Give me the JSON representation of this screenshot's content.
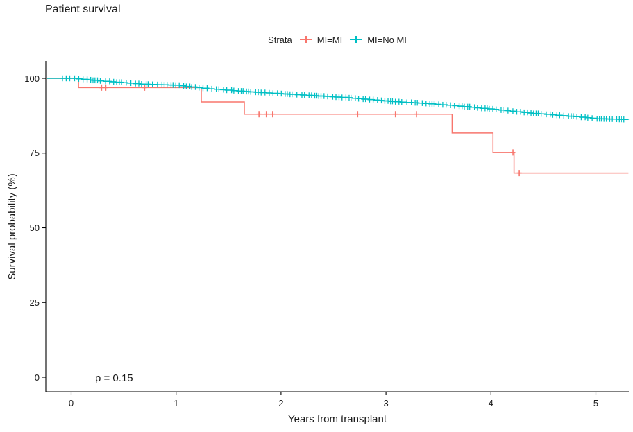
{
  "title": "Patient survival",
  "legend": {
    "title": "Strata",
    "items": [
      {
        "label": "MI=MI",
        "color": "#F8766D"
      },
      {
        "label": "MI=No MI",
        "color": "#00BFC4"
      }
    ]
  },
  "axes": {
    "x": {
      "label": "Years from transplant",
      "ticks": [
        0,
        1,
        2,
        3,
        4,
        5
      ]
    },
    "y": {
      "label": "Survival probability (%)",
      "ticks": [
        0,
        25,
        50,
        75,
        100
      ]
    }
  },
  "annotation": {
    "p_value": "p = 0.15"
  },
  "chart_data": {
    "type": "line",
    "subtype": "kaplan-meier-step",
    "title": "Patient survival",
    "xlabel": "Years from transplant",
    "ylabel": "Survival probability (%)",
    "xlim": [
      -0.25,
      5.35
    ],
    "ylim": [
      -5,
      106
    ],
    "xticks": [
      0,
      1,
      2,
      3,
      4,
      5
    ],
    "yticks": [
      0,
      25,
      50,
      75,
      100
    ],
    "grid": false,
    "legend_position": "top",
    "legend_title": "Strata",
    "p_value_text": "p = 0.15",
    "x_end": 5.31,
    "series": [
      {
        "name": "MI=MI",
        "color": "#F8766D",
        "step_points": [
          [
            0,
            100
          ],
          [
            0.07,
            96.9
          ],
          [
            1.24,
            92.1
          ],
          [
            1.65,
            88.0
          ],
          [
            3.63,
            81.7
          ],
          [
            4.02,
            75.2
          ],
          [
            4.22,
            68.3
          ],
          [
            5.31,
            68.3
          ]
        ],
        "censor_marks": [
          [
            0.29,
            96.9
          ],
          [
            0.33,
            96.9
          ],
          [
            0.7,
            96.9
          ],
          [
            1.79,
            88.0
          ],
          [
            1.86,
            88.0
          ],
          [
            1.92,
            88.0
          ],
          [
            2.73,
            88.0
          ],
          [
            3.09,
            88.0
          ],
          [
            3.29,
            88.0
          ],
          [
            4.21,
            75.2
          ],
          [
            4.27,
            68.3
          ]
        ]
      },
      {
        "name": "MI=No MI",
        "color": "#00BFC4",
        "interpolate_steps": true,
        "censoring": "dense",
        "step_points": [
          [
            0,
            100
          ],
          [
            0.31,
            99.0
          ],
          [
            0.65,
            98.1
          ],
          [
            0.98,
            97.7
          ],
          [
            1.31,
            96.5
          ],
          [
            1.64,
            95.6
          ],
          [
            1.97,
            94.9
          ],
          [
            2.3,
            94.2
          ],
          [
            2.63,
            93.5
          ],
          [
            3.03,
            92.3
          ],
          [
            3.36,
            91.6
          ],
          [
            3.69,
            90.7
          ],
          [
            4.02,
            89.6
          ],
          [
            4.35,
            88.4
          ],
          [
            4.68,
            87.5
          ],
          [
            5.01,
            86.5
          ],
          [
            5.31,
            86.2
          ]
        ]
      }
    ]
  }
}
